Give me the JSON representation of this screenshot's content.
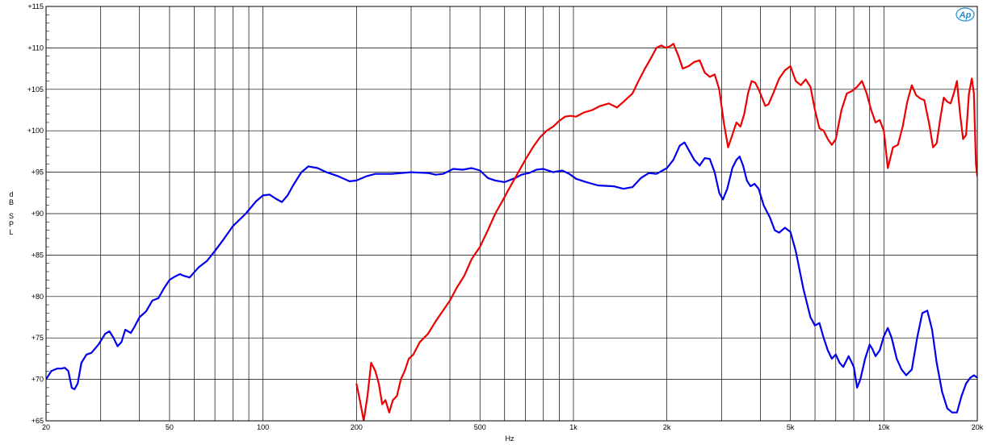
{
  "chart_data": {
    "type": "line",
    "title": "",
    "xlabel": "Hz",
    "ylabel": "dB SPL",
    "xscale": "log",
    "xlim": [
      20,
      20000
    ],
    "ylim": [
      65,
      115
    ],
    "grid": true,
    "legend": "none",
    "x_tick_labels": [
      "20",
      "50",
      "100",
      "200",
      "500",
      "1k",
      "2k",
      "5k",
      "10k",
      "20k"
    ],
    "x_tick_values": [
      20,
      50,
      100,
      200,
      500,
      1000,
      2000,
      5000,
      10000,
      20000
    ],
    "y_tick_labels": [
      "+65",
      "+70",
      "+75",
      "+80",
      "+85",
      "+90",
      "+95",
      "+100",
      "+105",
      "+110",
      "+115"
    ],
    "y_tick_values": [
      65,
      70,
      75,
      80,
      85,
      90,
      95,
      100,
      105,
      110,
      115
    ],
    "series": [
      {
        "color": "#0000ee",
        "points": [
          [
            20,
            70.0
          ],
          [
            20.8,
            71.0
          ],
          [
            21.7,
            71.3
          ],
          [
            22.4,
            71.3
          ],
          [
            23.0,
            71.4
          ],
          [
            23.6,
            71.0
          ],
          [
            24.2,
            69.0
          ],
          [
            24.7,
            68.8
          ],
          [
            25.3,
            69.5
          ],
          [
            26.0,
            72.0
          ],
          [
            27.0,
            73.0
          ],
          [
            28.0,
            73.2
          ],
          [
            29.5,
            74.2
          ],
          [
            31.0,
            75.5
          ],
          [
            32.0,
            75.8
          ],
          [
            33.0,
            75.0
          ],
          [
            34.0,
            74.0
          ],
          [
            35.0,
            74.5
          ],
          [
            36.0,
            76.0
          ],
          [
            37.5,
            75.6
          ],
          [
            38.5,
            76.3
          ],
          [
            40.0,
            77.5
          ],
          [
            42.0,
            78.2
          ],
          [
            44.0,
            79.5
          ],
          [
            46.0,
            79.8
          ],
          [
            48.0,
            81.0
          ],
          [
            50.0,
            82.0
          ],
          [
            52.0,
            82.4
          ],
          [
            54.0,
            82.7
          ],
          [
            55.5,
            82.5
          ],
          [
            58.0,
            82.3
          ],
          [
            62.0,
            83.5
          ],
          [
            66.0,
            84.3
          ],
          [
            70.0,
            85.5
          ],
          [
            75.0,
            87.0
          ],
          [
            80.0,
            88.5
          ],
          [
            88.0,
            90.0
          ],
          [
            95.0,
            91.5
          ],
          [
            100.0,
            92.2
          ],
          [
            105.0,
            92.3
          ],
          [
            110.0,
            91.8
          ],
          [
            115.0,
            91.4
          ],
          [
            120.0,
            92.2
          ],
          [
            125.0,
            93.4
          ],
          [
            133.0,
            95.0
          ],
          [
            140.0,
            95.7
          ],
          [
            150.0,
            95.5
          ],
          [
            160.0,
            95.0
          ],
          [
            175.0,
            94.5
          ],
          [
            190.0,
            93.9
          ],
          [
            200.0,
            94.0
          ],
          [
            215.0,
            94.5
          ],
          [
            230.0,
            94.8
          ],
          [
            260.0,
            94.8
          ],
          [
            300.0,
            95.0
          ],
          [
            340.0,
            94.9
          ],
          [
            360.0,
            94.7
          ],
          [
            380.0,
            94.8
          ],
          [
            410.0,
            95.4
          ],
          [
            440.0,
            95.3
          ],
          [
            470.0,
            95.5
          ],
          [
            500.0,
            95.2
          ],
          [
            530.0,
            94.3
          ],
          [
            560.0,
            94.0
          ],
          [
            600.0,
            93.8
          ],
          [
            650.0,
            94.3
          ],
          [
            680.0,
            94.7
          ],
          [
            720.0,
            94.9
          ],
          [
            760.0,
            95.3
          ],
          [
            800.0,
            95.4
          ],
          [
            860.0,
            95.0
          ],
          [
            920.0,
            95.2
          ],
          [
            970.0,
            94.8
          ],
          [
            1020.0,
            94.2
          ],
          [
            1100.0,
            93.8
          ],
          [
            1200.0,
            93.4
          ],
          [
            1350.0,
            93.3
          ],
          [
            1450.0,
            93.0
          ],
          [
            1550.0,
            93.2
          ],
          [
            1650.0,
            94.3
          ],
          [
            1750.0,
            94.9
          ],
          [
            1850.0,
            94.8
          ],
          [
            2000.0,
            95.5
          ],
          [
            2100.0,
            96.5
          ],
          [
            2200.0,
            98.2
          ],
          [
            2280.0,
            98.6
          ],
          [
            2350.0,
            97.7
          ],
          [
            2450.0,
            96.5
          ],
          [
            2550.0,
            95.8
          ],
          [
            2650.0,
            96.7
          ],
          [
            2750.0,
            96.6
          ],
          [
            2850.0,
            95.0
          ],
          [
            2950.0,
            92.5
          ],
          [
            3030.0,
            91.7
          ],
          [
            3130.0,
            93.0
          ],
          [
            3250.0,
            95.5
          ],
          [
            3350.0,
            96.5
          ],
          [
            3430.0,
            96.9
          ],
          [
            3520.0,
            95.8
          ],
          [
            3620.0,
            94.0
          ],
          [
            3720.0,
            93.3
          ],
          [
            3830.0,
            93.6
          ],
          [
            3950.0,
            93.0
          ],
          [
            4100.0,
            91.0
          ],
          [
            4300.0,
            89.5
          ],
          [
            4450.0,
            88.0
          ],
          [
            4600.0,
            87.7
          ],
          [
            4800.0,
            88.3
          ],
          [
            5000.0,
            87.8
          ],
          [
            5200.0,
            85.5
          ],
          [
            5500.0,
            81.0
          ],
          [
            5800.0,
            77.5
          ],
          [
            6000.0,
            76.5
          ],
          [
            6200.0,
            76.8
          ],
          [
            6400.0,
            75.0
          ],
          [
            6600.0,
            73.5
          ],
          [
            6800.0,
            72.5
          ],
          [
            7000.0,
            73.0
          ],
          [
            7200.0,
            72.0
          ],
          [
            7400.0,
            71.5
          ],
          [
            7700.0,
            72.8
          ],
          [
            8000.0,
            71.5
          ],
          [
            8200.0,
            69.0
          ],
          [
            8400.0,
            70.0
          ],
          [
            8700.0,
            72.5
          ],
          [
            9000.0,
            74.2
          ],
          [
            9200.0,
            73.6
          ],
          [
            9400.0,
            72.8
          ],
          [
            9700.0,
            73.5
          ],
          [
            10000.0,
            75.2
          ],
          [
            10300.0,
            76.2
          ],
          [
            10600.0,
            75.0
          ],
          [
            11000.0,
            72.5
          ],
          [
            11400.0,
            71.2
          ],
          [
            11800.0,
            70.5
          ],
          [
            12300.0,
            71.2
          ],
          [
            12800.0,
            75.0
          ],
          [
            13300.0,
            78.0
          ],
          [
            13800.0,
            78.3
          ],
          [
            14300.0,
            76.0
          ],
          [
            14800.0,
            72.0
          ],
          [
            15400.0,
            68.5
          ],
          [
            16000.0,
            66.5
          ],
          [
            16600.0,
            66.0
          ],
          [
            17200.0,
            66.0
          ],
          [
            17800.0,
            68.0
          ],
          [
            18400.0,
            69.5
          ],
          [
            19000.0,
            70.2
          ],
          [
            19500.0,
            70.5
          ],
          [
            20000.0,
            70.2
          ]
        ]
      },
      {
        "color": "#ee0000",
        "points": [
          [
            200,
            69.5
          ],
          [
            205,
            67.5
          ],
          [
            211,
            65.0
          ],
          [
            217,
            68.0
          ],
          [
            223,
            72.0
          ],
          [
            230,
            71.0
          ],
          [
            236,
            69.5
          ],
          [
            242,
            67.0
          ],
          [
            248,
            67.5
          ],
          [
            255,
            66.0
          ],
          [
            262,
            67.5
          ],
          [
            270,
            68.0
          ],
          [
            278,
            70.0
          ],
          [
            286,
            71.0
          ],
          [
            295,
            72.5
          ],
          [
            305,
            73.0
          ],
          [
            320,
            74.5
          ],
          [
            340,
            75.5
          ],
          [
            360,
            77.0
          ],
          [
            380,
            78.3
          ],
          [
            400,
            79.5
          ],
          [
            420,
            81.0
          ],
          [
            445,
            82.5
          ],
          [
            470,
            84.5
          ],
          [
            500,
            86.0
          ],
          [
            530,
            88.0
          ],
          [
            560,
            90.0
          ],
          [
            590,
            91.5
          ],
          [
            620,
            93.0
          ],
          [
            660,
            94.8
          ],
          [
            700,
            96.5
          ],
          [
            740,
            98.0
          ],
          [
            780,
            99.2
          ],
          [
            820,
            100.0
          ],
          [
            860,
            100.5
          ],
          [
            900,
            101.2
          ],
          [
            940,
            101.7
          ],
          [
            980,
            101.8
          ],
          [
            1020,
            101.7
          ],
          [
            1080,
            102.2
          ],
          [
            1150,
            102.5
          ],
          [
            1220,
            103.0
          ],
          [
            1300,
            103.3
          ],
          [
            1380,
            102.8
          ],
          [
            1450,
            103.5
          ],
          [
            1550,
            104.5
          ],
          [
            1620,
            106.0
          ],
          [
            1700,
            107.5
          ],
          [
            1780,
            108.8
          ],
          [
            1850,
            110.0
          ],
          [
            1920,
            110.3
          ],
          [
            1980,
            110.0
          ],
          [
            2050,
            110.2
          ],
          [
            2100,
            110.5
          ],
          [
            2180,
            109.0
          ],
          [
            2250,
            107.5
          ],
          [
            2350,
            107.8
          ],
          [
            2450,
            108.3
          ],
          [
            2550,
            108.5
          ],
          [
            2650,
            107.0
          ],
          [
            2750,
            106.5
          ],
          [
            2850,
            106.8
          ],
          [
            2950,
            105.0
          ],
          [
            3050,
            101.0
          ],
          [
            3150,
            98.0
          ],
          [
            3250,
            99.5
          ],
          [
            3350,
            101.0
          ],
          [
            3450,
            100.5
          ],
          [
            3550,
            102.0
          ],
          [
            3650,
            104.5
          ],
          [
            3750,
            106.0
          ],
          [
            3850,
            105.8
          ],
          [
            3950,
            105.0
          ],
          [
            4050,
            104.0
          ],
          [
            4150,
            103.0
          ],
          [
            4250,
            103.2
          ],
          [
            4400,
            104.5
          ],
          [
            4600,
            106.3
          ],
          [
            4800,
            107.3
          ],
          [
            5000,
            107.8
          ],
          [
            5200,
            106.0
          ],
          [
            5400,
            105.5
          ],
          [
            5600,
            106.2
          ],
          [
            5800,
            105.3
          ],
          [
            6000,
            102.5
          ],
          [
            6200,
            100.3
          ],
          [
            6400,
            100.0
          ],
          [
            6600,
            99.0
          ],
          [
            6800,
            98.3
          ],
          [
            7000,
            99.0
          ],
          [
            7300,
            102.5
          ],
          [
            7600,
            104.5
          ],
          [
            7900,
            104.8
          ],
          [
            8200,
            105.3
          ],
          [
            8500,
            106.0
          ],
          [
            8800,
            104.5
          ],
          [
            9100,
            102.5
          ],
          [
            9400,
            101.0
          ],
          [
            9700,
            101.3
          ],
          [
            10000,
            100.0
          ],
          [
            10300,
            95.5
          ],
          [
            10700,
            98.0
          ],
          [
            11100,
            98.3
          ],
          [
            11500,
            100.5
          ],
          [
            11900,
            103.5
          ],
          [
            12300,
            105.5
          ],
          [
            12700,
            104.3
          ],
          [
            13100,
            103.9
          ],
          [
            13500,
            103.7
          ],
          [
            14000,
            100.8
          ],
          [
            14400,
            98.0
          ],
          [
            14800,
            98.5
          ],
          [
            15200,
            101.5
          ],
          [
            15600,
            104.0
          ],
          [
            16000,
            103.5
          ],
          [
            16400,
            103.3
          ],
          [
            16800,
            104.5
          ],
          [
            17200,
            106.0
          ],
          [
            17600,
            102.0
          ],
          [
            18000,
            99.0
          ],
          [
            18400,
            99.5
          ],
          [
            18800,
            104.5
          ],
          [
            19200,
            106.3
          ],
          [
            19500,
            104.5
          ],
          [
            19800,
            96.0
          ],
          [
            20000,
            94.5
          ]
        ]
      }
    ]
  },
  "logo": {
    "text": "Ap",
    "color": "#1e8fd0"
  }
}
